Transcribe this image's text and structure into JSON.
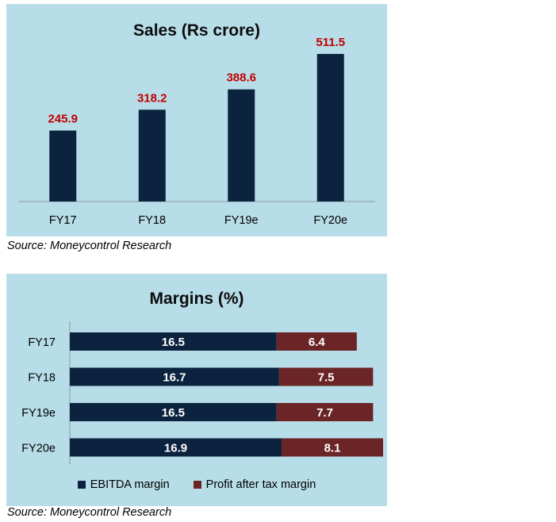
{
  "charts": {
    "sales": {
      "title": "Sales (Rs crore)",
      "source": "Source: Moneycontrol Research"
    },
    "margins": {
      "title": "Margins (%)",
      "source": "Source: Moneycontrol Research"
    }
  },
  "colors": {
    "navy": "#0c2340",
    "maroon": "#6b2527",
    "value_red": "#c00000"
  },
  "chart_data": [
    {
      "type": "bar",
      "title": "Sales (Rs crore)",
      "categories": [
        "FY17",
        "FY18",
        "FY19e",
        "FY20e"
      ],
      "values": [
        245.9,
        318.2,
        388.6,
        511.5
      ],
      "value_labels": [
        "245.9",
        "318.2",
        "388.6",
        "511.5"
      ],
      "ylim": [
        0,
        550
      ],
      "grid": false,
      "xlabel": "",
      "ylabel": ""
    },
    {
      "type": "bar",
      "orientation": "horizontal",
      "stacked": true,
      "title": "Margins (%)",
      "categories": [
        "FY17",
        "FY18",
        "FY19e",
        "FY20e"
      ],
      "series": [
        {
          "name": "EBITDA margin",
          "values": [
            16.5,
            16.7,
            16.5,
            16.9
          ],
          "labels": [
            "16.5",
            "16.7",
            "16.5",
            "16.9"
          ],
          "color": "#0c2340"
        },
        {
          "name": "Profit after tax margin",
          "values": [
            6.4,
            7.5,
            7.7,
            8.1
          ],
          "labels": [
            "6.4",
            "7.5",
            "7.7",
            "8.1"
          ],
          "color": "#6b2527"
        }
      ],
      "xlim": [
        0,
        25
      ],
      "legend": "bottom",
      "grid": false
    }
  ]
}
